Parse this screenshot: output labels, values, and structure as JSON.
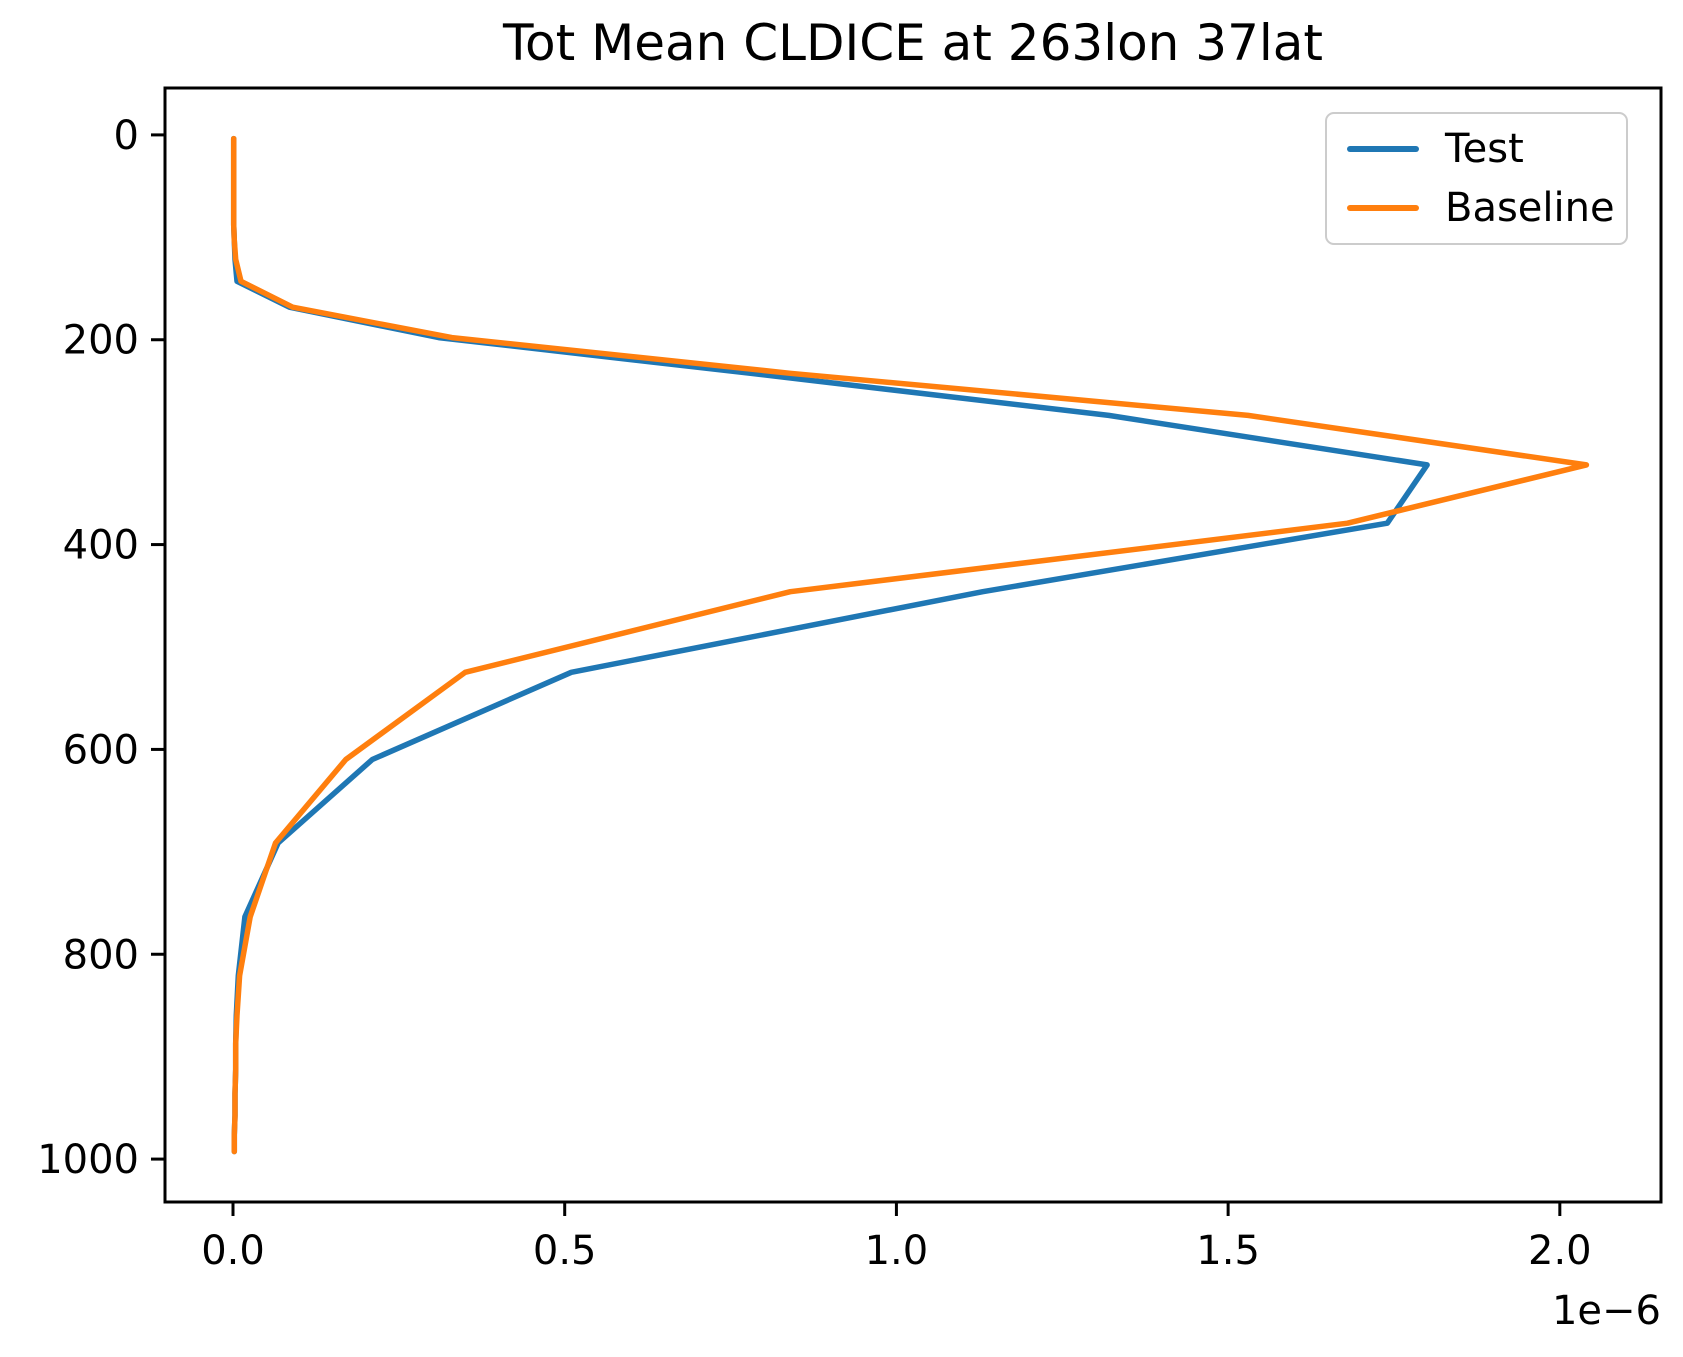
{
  "figure": {
    "title": "Tot Mean CLDICE at 263lon 37lat",
    "background_color": "#ffffff"
  },
  "legend": {
    "items": [
      {
        "label": "Test",
        "color": "#1f77b4"
      },
      {
        "label": "Baseline",
        "color": "#ff7f0e"
      }
    ]
  },
  "chart_data": {
    "type": "line",
    "title": "Tot Mean CLDICE at 263lon 37lat",
    "xlabel": "",
    "ylabel": "",
    "grid": false,
    "legend_position": "upper right",
    "axis_color": "#000000",
    "x_axis": {
      "tick_values_1e6": [
        0.0,
        0.5,
        1.0,
        1.5,
        2.0
      ],
      "tick_labels": [
        "0.0",
        "0.5",
        "1.0",
        "1.5",
        "2.0"
      ],
      "offset_label": "1e−6",
      "lim_1e6": [
        -0.1025,
        2.1525
      ]
    },
    "y_axis": {
      "tick_values_hpa": [
        0,
        200,
        400,
        600,
        800,
        1000
      ],
      "tick_labels": [
        "0",
        "200",
        "400",
        "600",
        "800",
        "1000"
      ],
      "inverted": true,
      "lim_hpa": [
        1041.9,
        -45.8
      ]
    },
    "levels_hpa": [
      3.64,
      7.59,
      14.36,
      24.61,
      35.92,
      43.19,
      51.68,
      61.52,
      73.75,
      87.82,
      103.32,
      121.55,
      142.9,
      168.2,
      197.9,
      232.8,
      273.9,
      322.2,
      379.1,
      446.0,
      524.7,
      609.8,
      691.4,
      763.4,
      820.9,
      859.5,
      887.0,
      912.6,
      936.2,
      957.5,
      976.3,
      992.6
    ],
    "series": [
      {
        "name": "Test",
        "color": "#1f77b4",
        "values_1e6": [
          0.001,
          0.001,
          0.001,
          0.001,
          0.001,
          0.001,
          0.001,
          0.001,
          0.001,
          0.001,
          0.002,
          0.003,
          0.006,
          0.085,
          0.31,
          0.78,
          1.32,
          1.8,
          1.74,
          1.13,
          0.51,
          0.21,
          0.068,
          0.018,
          0.008,
          0.005,
          0.004,
          0.004,
          0.003,
          0.003,
          0.002,
          0.002
        ]
      },
      {
        "name": "Baseline",
        "color": "#ff7f0e",
        "values_1e6": [
          0.001,
          0.001,
          0.001,
          0.001,
          0.001,
          0.001,
          0.001,
          0.001,
          0.001,
          0.001,
          0.002,
          0.004,
          0.012,
          0.09,
          0.33,
          0.84,
          1.53,
          2.04,
          1.68,
          0.84,
          0.35,
          0.17,
          0.064,
          0.026,
          0.01,
          0.006,
          0.004,
          0.004,
          0.003,
          0.003,
          0.002,
          0.002
        ]
      }
    ]
  }
}
